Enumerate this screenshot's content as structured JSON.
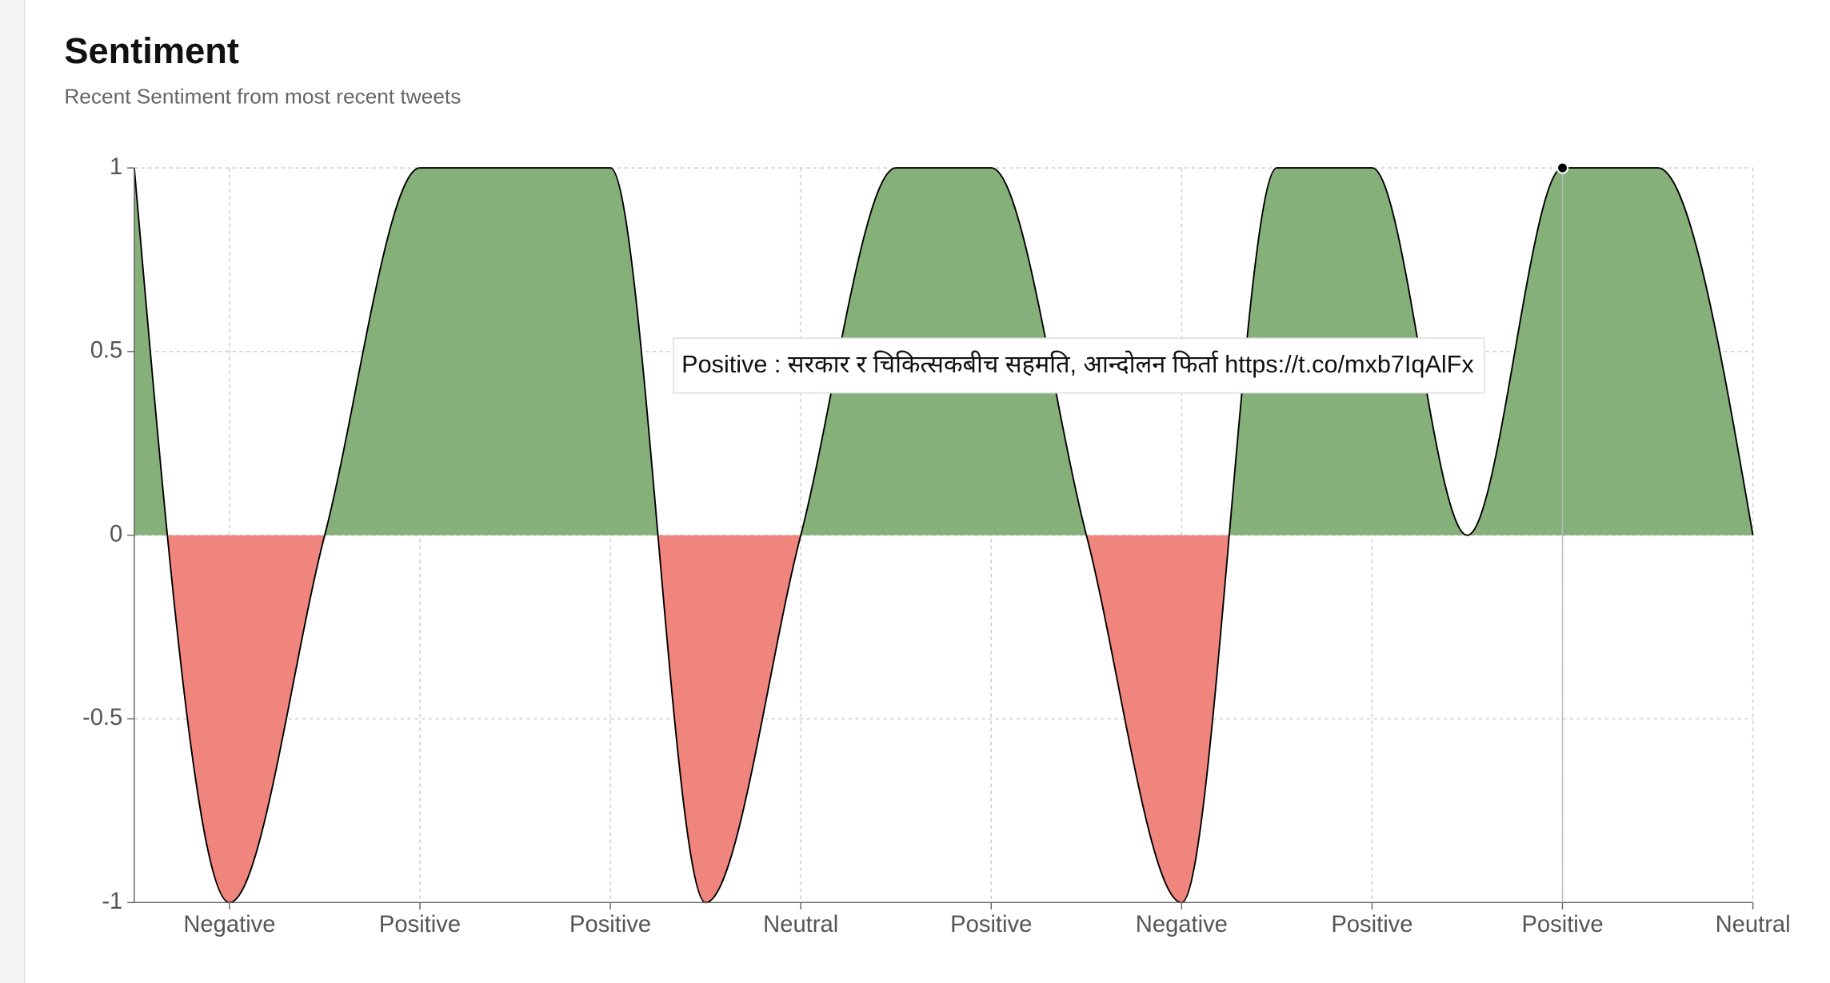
{
  "chart_data": {
    "type": "area",
    "title": "Sentiment",
    "subtitle": "Recent Sentiment from most recent tweets",
    "categories": [
      null,
      "Negative",
      null,
      "Positive",
      null,
      "Positive",
      null,
      "Neutral",
      null,
      "Positive",
      null,
      "Negative",
      null,
      "Positive",
      null,
      "Positive",
      null,
      "Neutral"
    ],
    "values": [
      1,
      -1,
      0,
      1,
      1,
      1,
      -1,
      0,
      1,
      1,
      0,
      -1,
      1,
      1,
      0,
      1,
      1,
      0
    ],
    "positive_color": "#86b07a",
    "negative_color": "#f0857d",
    "ylim": [
      -1,
      1
    ],
    "yticks": [
      -1,
      -0.5,
      0,
      0.5,
      1
    ],
    "grid": true,
    "tooltip": "Positive : सरकार र चिकित्सकबीच सहमति, आन्दोलन फिर्ता https://t.co/mxb7IqAlFx"
  }
}
